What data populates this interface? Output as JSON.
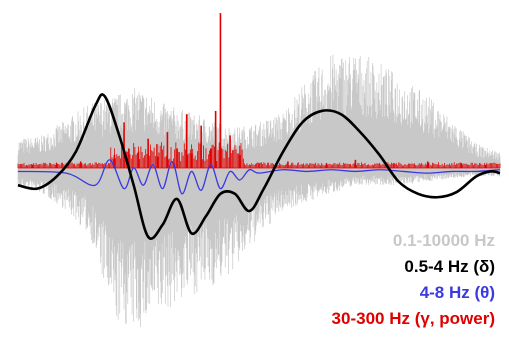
{
  "chart_data": {
    "type": "line",
    "title": "",
    "xlabel": "",
    "ylabel": "",
    "grid": false,
    "legend_position": "bottom-right",
    "ylim": [
      -1,
      1
    ],
    "xlim": [
      0,
      1
    ],
    "series": [
      {
        "name": "0.1-10000 Hz",
        "color": "#c8c8c8",
        "render": "broadband-noise",
        "envelope": {
          "x": [
            0.0,
            0.05,
            0.1,
            0.15,
            0.2,
            0.25,
            0.3,
            0.35,
            0.4,
            0.45,
            0.5,
            0.55,
            0.6,
            0.65,
            0.7,
            0.75,
            0.8,
            0.85,
            0.9,
            0.95,
            1.0
          ],
          "max": [
            0.18,
            0.2,
            0.3,
            0.4,
            0.45,
            0.5,
            0.4,
            0.35,
            0.3,
            0.25,
            0.28,
            0.35,
            0.55,
            0.7,
            0.72,
            0.65,
            0.55,
            0.45,
            0.3,
            0.15,
            0.1
          ],
          "min": [
            -0.12,
            -0.15,
            -0.25,
            -0.4,
            -0.9,
            -0.95,
            -0.85,
            -0.75,
            -0.7,
            -0.6,
            -0.4,
            -0.25,
            -0.2,
            -0.15,
            -0.1,
            -0.1,
            -0.1,
            -0.08,
            -0.06,
            -0.05,
            -0.05
          ]
        }
      },
      {
        "name": "0.5-4 Hz (δ)",
        "color": "#000000",
        "x": [
          0.0,
          0.04,
          0.08,
          0.12,
          0.16,
          0.18,
          0.21,
          0.24,
          0.27,
          0.3,
          0.33,
          0.36,
          0.39,
          0.42,
          0.45,
          0.48,
          0.51,
          0.55,
          0.59,
          0.63,
          0.67,
          0.71,
          0.75,
          0.79,
          0.83,
          0.87,
          0.91,
          0.95,
          0.98,
          1.0
        ],
        "y": [
          -0.1,
          -0.12,
          -0.05,
          0.1,
          0.38,
          0.44,
          0.2,
          -0.1,
          -0.4,
          -0.33,
          -0.18,
          -0.38,
          -0.28,
          -0.15,
          -0.15,
          -0.25,
          -0.12,
          0.1,
          0.28,
          0.35,
          0.33,
          0.22,
          0.08,
          -0.08,
          -0.15,
          -0.17,
          -0.14,
          -0.05,
          -0.02,
          -0.03
        ]
      },
      {
        "name": "4-8 Hz (θ)",
        "color": "#3a3ae0",
        "x": [
          0.0,
          0.1,
          0.16,
          0.19,
          0.22,
          0.24,
          0.26,
          0.28,
          0.3,
          0.32,
          0.34,
          0.36,
          0.38,
          0.4,
          0.42,
          0.44,
          0.46,
          0.48,
          0.5,
          0.55,
          0.6,
          0.65,
          0.7,
          0.75,
          0.8,
          0.85,
          0.9,
          0.95,
          1.0
        ],
        "y": [
          -0.02,
          -0.03,
          -0.1,
          0.05,
          -0.12,
          0.0,
          -0.1,
          0.02,
          -0.12,
          0.04,
          -0.15,
          -0.02,
          -0.13,
          0.02,
          -0.12,
          -0.02,
          -0.07,
          -0.01,
          -0.03,
          -0.01,
          -0.02,
          -0.01,
          -0.02,
          -0.01,
          -0.02,
          -0.03,
          -0.02,
          -0.02,
          -0.01
        ]
      },
      {
        "name": "30-300 Hz (γ, power)",
        "color": "#e00000",
        "render": "spikes",
        "x": [
          0.03,
          0.08,
          0.13,
          0.2,
          0.22,
          0.23,
          0.25,
          0.27,
          0.29,
          0.31,
          0.33,
          0.35,
          0.36,
          0.38,
          0.4,
          0.41,
          0.42,
          0.44,
          0.46,
          0.5,
          0.56,
          0.64,
          0.7,
          0.78,
          0.85,
          0.92,
          0.97
        ],
        "y": [
          0.02,
          0.03,
          0.04,
          0.08,
          0.28,
          0.12,
          0.1,
          0.18,
          0.07,
          0.22,
          0.12,
          0.33,
          0.09,
          0.26,
          0.12,
          0.35,
          0.95,
          0.2,
          0.08,
          0.03,
          0.04,
          0.03,
          0.05,
          0.03,
          0.04,
          0.03,
          0.02
        ]
      }
    ]
  }
}
